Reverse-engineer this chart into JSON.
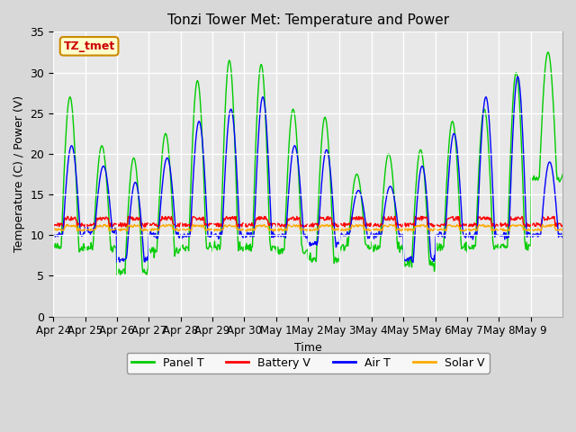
{
  "title": "Tonzi Tower Met: Temperature and Power",
  "xlabel": "Time",
  "ylabel": "Temperature (C) / Power (V)",
  "ylim": [
    0,
    35
  ],
  "yticks": [
    0,
    5,
    10,
    15,
    20,
    25,
    30,
    35
  ],
  "x_labels": [
    "Apr 24",
    "Apr 25",
    "Apr 26",
    "Apr 27",
    "Apr 28",
    "Apr 29",
    "Apr 30",
    "May 1",
    "May 2",
    "May 3",
    "May 4",
    "May 5",
    "May 6",
    "May 7",
    "May 8",
    "May 9"
  ],
  "annotation_text": "TZ_tmet",
  "annotation_box_color": "#ffffcc",
  "annotation_border_color": "#cc8800",
  "annotation_text_color": "#cc0000",
  "plot_bg_color": "#e8e8e8",
  "fig_bg_color": "#d8d8d8",
  "grid_color": "white",
  "panel_t_color": "#00cc00",
  "battery_v_color": "#ff0000",
  "air_t_color": "#0000ff",
  "solar_v_color": "#ffaa00",
  "legend_labels": [
    "Panel T",
    "Battery V",
    "Air T",
    "Solar V"
  ],
  "day_peaks_panel": [
    27,
    21,
    19.5,
    22.5,
    29,
    31.5,
    31,
    25.5,
    24.5,
    17.5,
    20,
    20.5,
    24,
    25.5,
    30,
    32.5
  ],
  "day_mins_panel": [
    8.5,
    8.5,
    5.5,
    8,
    8.5,
    8.5,
    8.5,
    8,
    7,
    8.5,
    8.5,
    6.5,
    8.5,
    8.5,
    8.5,
    17
  ],
  "day_peaks_air": [
    21,
    18.5,
    16.5,
    19.5,
    24,
    25.5,
    27,
    21,
    20.5,
    15.5,
    16,
    18.5,
    22.5,
    27,
    29.5,
    19
  ],
  "day_mins_air": [
    10,
    10.5,
    7,
    10,
    10,
    10,
    10,
    10,
    9,
    10,
    10,
    7,
    10,
    10,
    10,
    10
  ]
}
